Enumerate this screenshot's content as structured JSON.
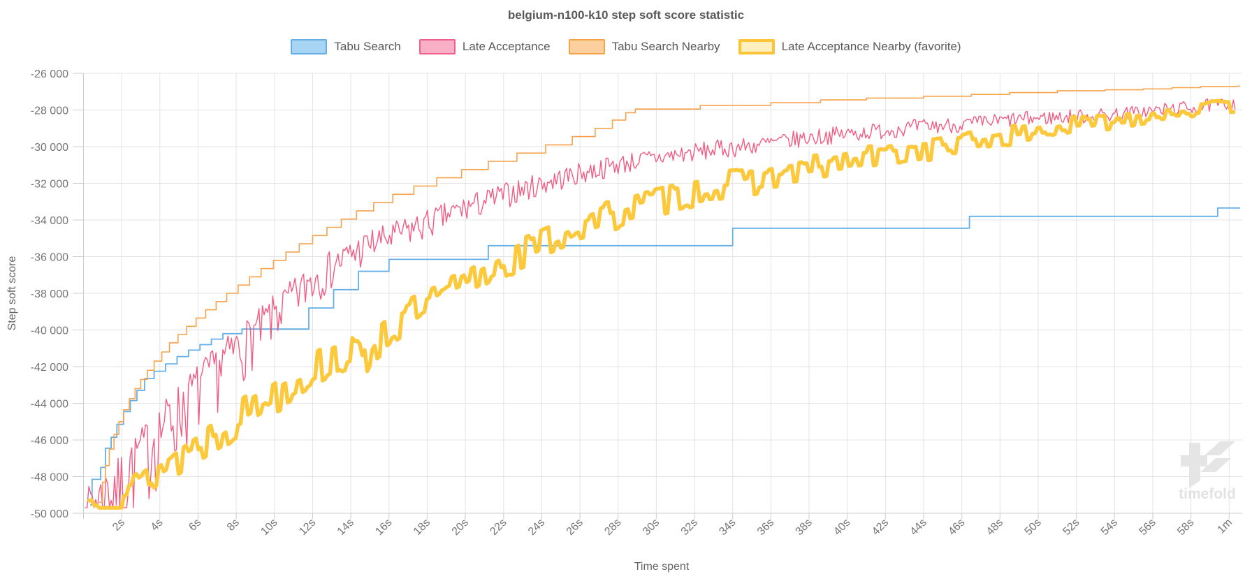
{
  "title": "belgium-n100-k10 step soft score statistic",
  "watermark": {
    "text": "timefold"
  },
  "legend": [
    {
      "label": "Tabu Search",
      "fill": "#A9D5F5",
      "border": "#62AEE5",
      "border_width": 2
    },
    {
      "label": "Late Acceptance",
      "fill": "#F9AFC6",
      "border": "#F0608C",
      "border_width": 2
    },
    {
      "label": "Tabu Search Nearby",
      "fill": "#FBCF9E",
      "border": "#F7A449",
      "border_width": 2
    },
    {
      "label": "Late Acceptance Nearby (favorite)",
      "fill": "#FDF0BE",
      "border": "#FBC336",
      "border_width": 4
    }
  ],
  "axes": {
    "y_title": "Step soft score",
    "x_title": "Time spent",
    "y_ticks": {
      "values": [
        -26000,
        -28000,
        -30000,
        -32000,
        -34000,
        -36000,
        -38000,
        -40000,
        -42000,
        -44000,
        -46000,
        -48000,
        -50000
      ],
      "labels": [
        "-26 000",
        "-28 000",
        "-30 000",
        "-32 000",
        "-34 000",
        "-36 000",
        "-38 000",
        "-40 000",
        "-42 000",
        "-44 000",
        "-46 000",
        "-48 000",
        "-50 000"
      ]
    },
    "x_ticks": {
      "values": [
        2,
        4,
        6,
        8,
        10,
        12,
        14,
        16,
        18,
        20,
        22,
        24,
        26,
        28,
        30,
        32,
        34,
        36,
        38,
        40,
        42,
        44,
        46,
        48,
        50,
        52,
        54,
        56,
        58,
        60
      ],
      "labels": [
        "2s",
        "4s",
        "6s",
        "8s",
        "10s",
        "12s",
        "14s",
        "16s",
        "18s",
        "20s",
        "22s",
        "24s",
        "26s",
        "28s",
        "30s",
        "32s",
        "34s",
        "36s",
        "38s",
        "40s",
        "42s",
        "44s",
        "46s",
        "48s",
        "50s",
        "52s",
        "54s",
        "56s",
        "58s",
        "1m"
      ]
    }
  },
  "chart_data": {
    "type": "line",
    "title": "belgium-n100-k10 step soft score statistic",
    "xlabel": "Time spent",
    "ylabel": "Step soft score",
    "x_unit": "seconds",
    "xlim": [
      0,
      60.5
    ],
    "ylim": [
      -50000,
      -26000
    ],
    "grid": true,
    "legend_position": "top",
    "series": [
      {
        "name": "Tabu Search",
        "color": "#64AFE8",
        "style": "step",
        "line_width": 1.8,
        "points": [
          [
            0.38,
            -49550
          ],
          [
            0.45,
            -48150
          ],
          [
            0.9,
            -47500
          ],
          [
            1.15,
            -46450
          ],
          [
            1.45,
            -45850
          ],
          [
            1.75,
            -45150
          ],
          [
            2.1,
            -44450
          ],
          [
            2.45,
            -43850
          ],
          [
            2.8,
            -43300
          ],
          [
            3.2,
            -42650
          ],
          [
            3.7,
            -42250
          ],
          [
            4.3,
            -41850
          ],
          [
            4.9,
            -41450
          ],
          [
            5.5,
            -41100
          ],
          [
            6.1,
            -40800
          ],
          [
            6.7,
            -40500
          ],
          [
            7.3,
            -40200
          ],
          [
            8.3,
            -39950
          ],
          [
            11.8,
            -38800
          ],
          [
            13.1,
            -37800
          ],
          [
            14.4,
            -36800
          ],
          [
            16.0,
            -36150
          ],
          [
            21.2,
            -35400
          ],
          [
            34.0,
            -34450
          ],
          [
            46.4,
            -33800
          ],
          [
            59.4,
            -33350
          ],
          [
            60.5,
            -33350
          ]
        ]
      },
      {
        "name": "Late Acceptance",
        "color": "#F25C82",
        "style": "noisy",
        "line_width": 1.4,
        "dt": 0.09,
        "hold": 1,
        "seed": 7,
        "clamp_min": -49700,
        "noise": [
          [
            0.1,
            600
          ],
          [
            1,
            800
          ],
          [
            3,
            950
          ],
          [
            6,
            1000
          ],
          [
            10,
            850
          ],
          [
            14,
            750
          ],
          [
            18,
            680
          ],
          [
            22,
            620
          ],
          [
            26,
            560
          ],
          [
            30,
            520
          ],
          [
            35,
            490
          ],
          [
            40,
            460
          ],
          [
            45,
            430
          ],
          [
            50,
            410
          ],
          [
            55,
            390
          ],
          [
            60.3,
            360
          ]
        ],
        "down_boost": 4.5,
        "down_decay": 8,
        "points": [
          [
            0.1,
            -48600
          ],
          [
            0.3,
            -49200
          ],
          [
            0.8,
            -48900
          ],
          [
            1.5,
            -48200
          ],
          [
            2,
            -47600
          ],
          [
            3,
            -46300
          ],
          [
            4,
            -45000
          ],
          [
            5,
            -43900
          ],
          [
            6,
            -42800
          ],
          [
            7,
            -41800
          ],
          [
            8,
            -40800
          ],
          [
            9,
            -39900
          ],
          [
            10,
            -38900
          ],
          [
            11,
            -38000
          ],
          [
            12,
            -37100
          ],
          [
            13,
            -36400
          ],
          [
            14,
            -35800
          ],
          [
            15,
            -35200
          ],
          [
            16,
            -34900
          ],
          [
            17,
            -34500
          ],
          [
            18,
            -34100
          ],
          [
            19,
            -33700
          ],
          [
            20,
            -33300
          ],
          [
            21,
            -32950
          ],
          [
            22,
            -32600
          ],
          [
            23,
            -32300
          ],
          [
            24,
            -32000
          ],
          [
            25,
            -31700
          ],
          [
            26,
            -31450
          ],
          [
            27,
            -31200
          ],
          [
            28,
            -30950
          ],
          [
            29,
            -30750
          ],
          [
            30,
            -30600
          ],
          [
            31,
            -30450
          ],
          [
            32,
            -30300
          ],
          [
            33,
            -30150
          ],
          [
            34,
            -30050
          ],
          [
            35,
            -29950
          ],
          [
            36,
            -29800
          ],
          [
            37,
            -29650
          ],
          [
            38,
            -29500
          ],
          [
            39,
            -29400
          ],
          [
            40,
            -29300
          ],
          [
            41,
            -29200
          ],
          [
            42,
            -29100
          ],
          [
            43,
            -29000
          ],
          [
            44,
            -28900
          ],
          [
            45,
            -28850
          ],
          [
            46,
            -28800
          ],
          [
            47,
            -28700
          ],
          [
            48,
            -28600
          ],
          [
            49,
            -28500
          ],
          [
            50,
            -28450
          ],
          [
            51,
            -28400
          ],
          [
            52,
            -28350
          ],
          [
            53,
            -28300
          ],
          [
            54,
            -28250
          ],
          [
            55,
            -28150
          ],
          [
            56,
            -28050
          ],
          [
            57,
            -27950
          ],
          [
            58,
            -27850
          ],
          [
            59,
            -27750
          ],
          [
            60.3,
            -27650
          ]
        ]
      },
      {
        "name": "Tabu Search Nearby",
        "color": "#F8A24C",
        "style": "step",
        "line_width": 1.6,
        "points": [
          [
            0.85,
            -49400
          ],
          [
            1.0,
            -48300
          ],
          [
            1.15,
            -47400
          ],
          [
            1.35,
            -46500
          ],
          [
            1.6,
            -45700
          ],
          [
            1.85,
            -45000
          ],
          [
            2.1,
            -44350
          ],
          [
            2.4,
            -43750
          ],
          [
            2.7,
            -43200
          ],
          [
            3.0,
            -42700
          ],
          [
            3.35,
            -42200
          ],
          [
            3.7,
            -41700
          ],
          [
            4.1,
            -41200
          ],
          [
            4.5,
            -40700
          ],
          [
            4.95,
            -40250
          ],
          [
            5.4,
            -39800
          ],
          [
            5.9,
            -39350
          ],
          [
            6.4,
            -38900
          ],
          [
            6.95,
            -38450
          ],
          [
            7.5,
            -38000
          ],
          [
            8.1,
            -37550
          ],
          [
            8.7,
            -37100
          ],
          [
            9.3,
            -36650
          ],
          [
            9.95,
            -36200
          ],
          [
            10.6,
            -35750
          ],
          [
            11.3,
            -35300
          ],
          [
            12.0,
            -34850
          ],
          [
            12.75,
            -34400
          ],
          [
            13.5,
            -33950
          ],
          [
            14.3,
            -33500
          ],
          [
            15.2,
            -33050
          ],
          [
            16.2,
            -32600
          ],
          [
            17.3,
            -32150
          ],
          [
            18.5,
            -31700
          ],
          [
            19.8,
            -31250
          ],
          [
            21.2,
            -30800
          ],
          [
            22.7,
            -30350
          ],
          [
            24.2,
            -29900
          ],
          [
            25.6,
            -29450
          ],
          [
            26.8,
            -29000
          ],
          [
            27.7,
            -28550
          ],
          [
            28.4,
            -28150
          ],
          [
            28.9,
            -27950
          ],
          [
            32.3,
            -27750
          ],
          [
            36.0,
            -27600
          ],
          [
            38.6,
            -27450
          ],
          [
            41.0,
            -27350
          ],
          [
            44.0,
            -27250
          ],
          [
            46.5,
            -27150
          ],
          [
            48.5,
            -27050
          ],
          [
            51.0,
            -26950
          ],
          [
            53.5,
            -26900
          ],
          [
            55.5,
            -26850
          ],
          [
            57.0,
            -26780
          ],
          [
            58.5,
            -26720
          ],
          [
            60.4,
            -26700
          ]
        ]
      },
      {
        "name": "Late Acceptance Nearby (favorite)",
        "color": "#FCC83C",
        "style": "noisy",
        "line_width": 5.5,
        "dt": 0.13,
        "hold": 2,
        "seed": 13,
        "clamp_min": -49700,
        "noise": [
          [
            0.3,
            350
          ],
          [
            2,
            600
          ],
          [
            5,
            800
          ],
          [
            9,
            900
          ],
          [
            13,
            950
          ],
          [
            17,
            1000
          ],
          [
            21,
            950
          ],
          [
            25,
            900
          ],
          [
            29,
            850
          ],
          [
            33,
            800
          ],
          [
            37,
            750
          ],
          [
            41,
            700
          ],
          [
            45,
            650
          ],
          [
            49,
            550
          ],
          [
            53,
            500
          ],
          [
            57,
            430
          ],
          [
            60.3,
            380
          ]
        ],
        "down_boost": 1.2,
        "down_decay": 10,
        "points": [
          [
            0.3,
            -49350
          ],
          [
            1,
            -49300
          ],
          [
            2,
            -48800
          ],
          [
            3,
            -48200
          ],
          [
            4,
            -47500
          ],
          [
            5,
            -46800
          ],
          [
            6,
            -46100
          ],
          [
            7,
            -45400
          ],
          [
            8,
            -44700
          ],
          [
            9,
            -44000
          ],
          [
            10,
            -43300
          ],
          [
            11,
            -42700
          ],
          [
            12,
            -42100
          ],
          [
            13,
            -41500
          ],
          [
            14,
            -41100
          ],
          [
            14.6,
            -41900
          ],
          [
            15.2,
            -40600
          ],
          [
            16,
            -39900
          ],
          [
            17,
            -39300
          ],
          [
            18,
            -38700
          ],
          [
            19,
            -38100
          ],
          [
            20,
            -37500
          ],
          [
            21,
            -36900
          ],
          [
            22,
            -36300
          ],
          [
            23,
            -35800
          ],
          [
            24,
            -35300
          ],
          [
            25,
            -34800
          ],
          [
            26,
            -34400
          ],
          [
            27,
            -34000
          ],
          [
            28,
            -33600
          ],
          [
            29,
            -33250
          ],
          [
            30,
            -32950
          ],
          [
            31,
            -32700
          ],
          [
            32,
            -32450
          ],
          [
            33,
            -32250
          ],
          [
            34,
            -32050
          ],
          [
            35,
            -31850
          ],
          [
            36,
            -31650
          ],
          [
            37,
            -31450
          ],
          [
            38,
            -31250
          ],
          [
            39,
            -31050
          ],
          [
            40,
            -30850
          ],
          [
            41,
            -30650
          ],
          [
            42,
            -30450
          ],
          [
            43,
            -30300
          ],
          [
            44,
            -30150
          ],
          [
            45,
            -30000
          ],
          [
            46,
            -29850
          ],
          [
            47,
            -29650
          ],
          [
            48,
            -29500
          ],
          [
            49,
            -29350
          ],
          [
            50,
            -29200
          ],
          [
            51,
            -29000
          ],
          [
            52,
            -28850
          ],
          [
            53,
            -28700
          ],
          [
            54,
            -28550
          ],
          [
            55,
            -28400
          ],
          [
            56,
            -28250
          ],
          [
            57,
            -28100
          ],
          [
            58,
            -28000
          ],
          [
            59,
            -27900
          ],
          [
            60.3,
            -27800
          ]
        ]
      }
    ]
  }
}
